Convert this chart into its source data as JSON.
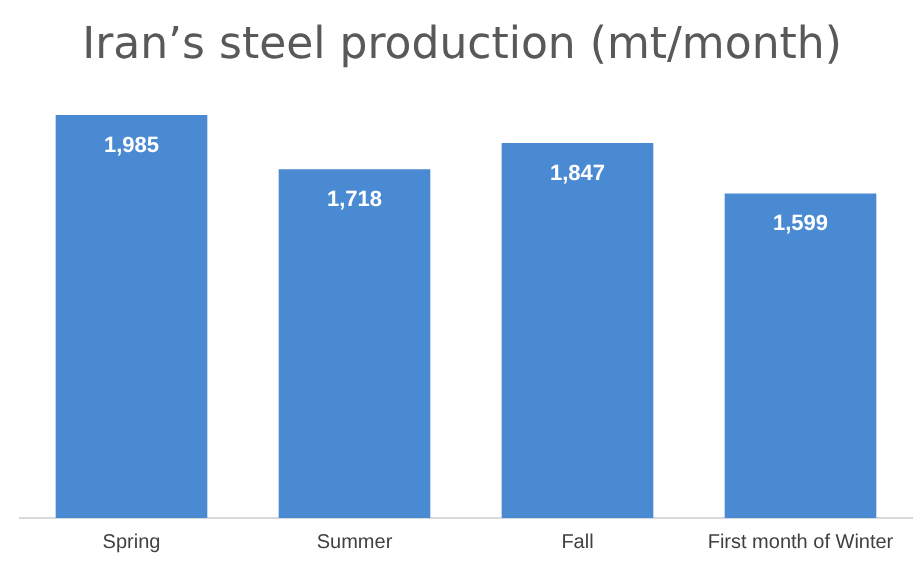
{
  "chart_data": {
    "type": "bar",
    "title": "Iran’s steel production (mt/month)",
    "categories": [
      "Spring",
      "Summer",
      "Fall",
      "First month of Winter"
    ],
    "values": [
      1985,
      1718,
      1847,
      1599
    ],
    "value_labels": [
      "1,985",
      "1,718",
      "1,847",
      "1,599"
    ],
    "color": "#4a8ad3",
    "grid": false,
    "legend": false
  }
}
